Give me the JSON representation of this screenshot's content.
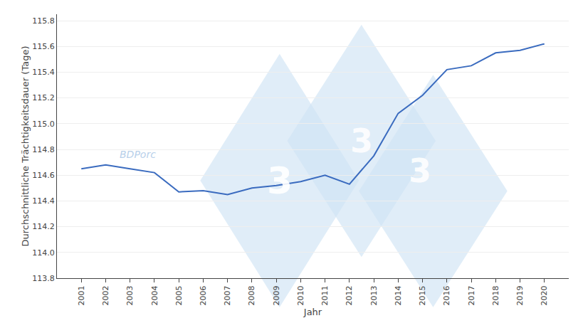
{
  "chart_data": {
    "type": "line",
    "x": [
      2001,
      2002,
      2003,
      2004,
      2005,
      2006,
      2007,
      2008,
      2009,
      2010,
      2011,
      2012,
      2013,
      2014,
      2015,
      2016,
      2017,
      2018,
      2019,
      2020
    ],
    "values": [
      114.65,
      114.68,
      114.65,
      114.62,
      114.47,
      114.48,
      114.45,
      114.5,
      114.52,
      114.55,
      114.6,
      114.53,
      114.75,
      115.08,
      115.22,
      115.42,
      115.45,
      115.55,
      115.57,
      115.62
    ],
    "color": "#3a6bbf",
    "xlabel": "Jahr",
    "ylabel": "Durchschnittliche Trächtigkeitsdauer (Tage)",
    "xlim": [
      2000,
      2021
    ],
    "xticks": [
      2001,
      2002,
      2003,
      2004,
      2005,
      2006,
      2007,
      2008,
      2009,
      2010,
      2011,
      2012,
      2013,
      2014,
      2015,
      2016,
      2017,
      2018,
      2019,
      2020
    ],
    "ylim": [
      113.8,
      115.85
    ],
    "yticks": [
      113.8,
      {
        "value": 114.0,
        "label": "114.0"
      },
      114.2,
      114.4,
      114.6,
      114.8,
      {
        "value": 115.0,
        "label": "115.0"
      },
      115.2,
      115.4,
      115.6,
      115.8
    ],
    "grid": "y",
    "annotations": [
      "BDPorc",
      "3",
      "3",
      "3"
    ]
  }
}
